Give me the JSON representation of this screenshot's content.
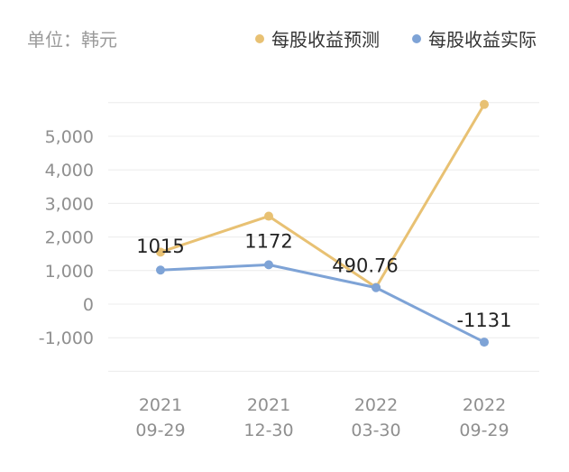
{
  "chart_data": {
    "type": "line",
    "unit_label": "单位：韩元",
    "categories": [
      [
        "2021",
        "09-29"
      ],
      [
        "2021",
        "12-30"
      ],
      [
        "2022",
        "03-30"
      ],
      [
        "2022",
        "09-29"
      ]
    ],
    "series": [
      {
        "name": "每股收益预测",
        "color": "#e8c173",
        "values": [
          1550,
          2620,
          500,
          5950
        ]
      },
      {
        "name": "每股收益实际",
        "color": "#7ea3d6",
        "values": [
          1015,
          1172,
          490.76,
          -1131
        ]
      }
    ],
    "data_labels": [
      {
        "series": 1,
        "index": 0,
        "text": "1015"
      },
      {
        "series": 1,
        "index": 1,
        "text": "1172"
      },
      {
        "series": 1,
        "index": 2,
        "text": "490.76"
      },
      {
        "series": 1,
        "index": 3,
        "text": "-1131"
      }
    ],
    "y_ticks": [
      {
        "value": 5000,
        "label": "5,000"
      },
      {
        "value": 4000,
        "label": "4,000"
      },
      {
        "value": 3000,
        "label": "3,000"
      },
      {
        "value": 2000,
        "label": "2,000"
      },
      {
        "value": 1000,
        "label": "1,000"
      },
      {
        "value": 0,
        "label": "0"
      },
      {
        "value": -1000,
        "label": "-1,000"
      }
    ],
    "ylim": [
      -2000,
      6000
    ],
    "grid": true,
    "legend_position": "top-right"
  }
}
